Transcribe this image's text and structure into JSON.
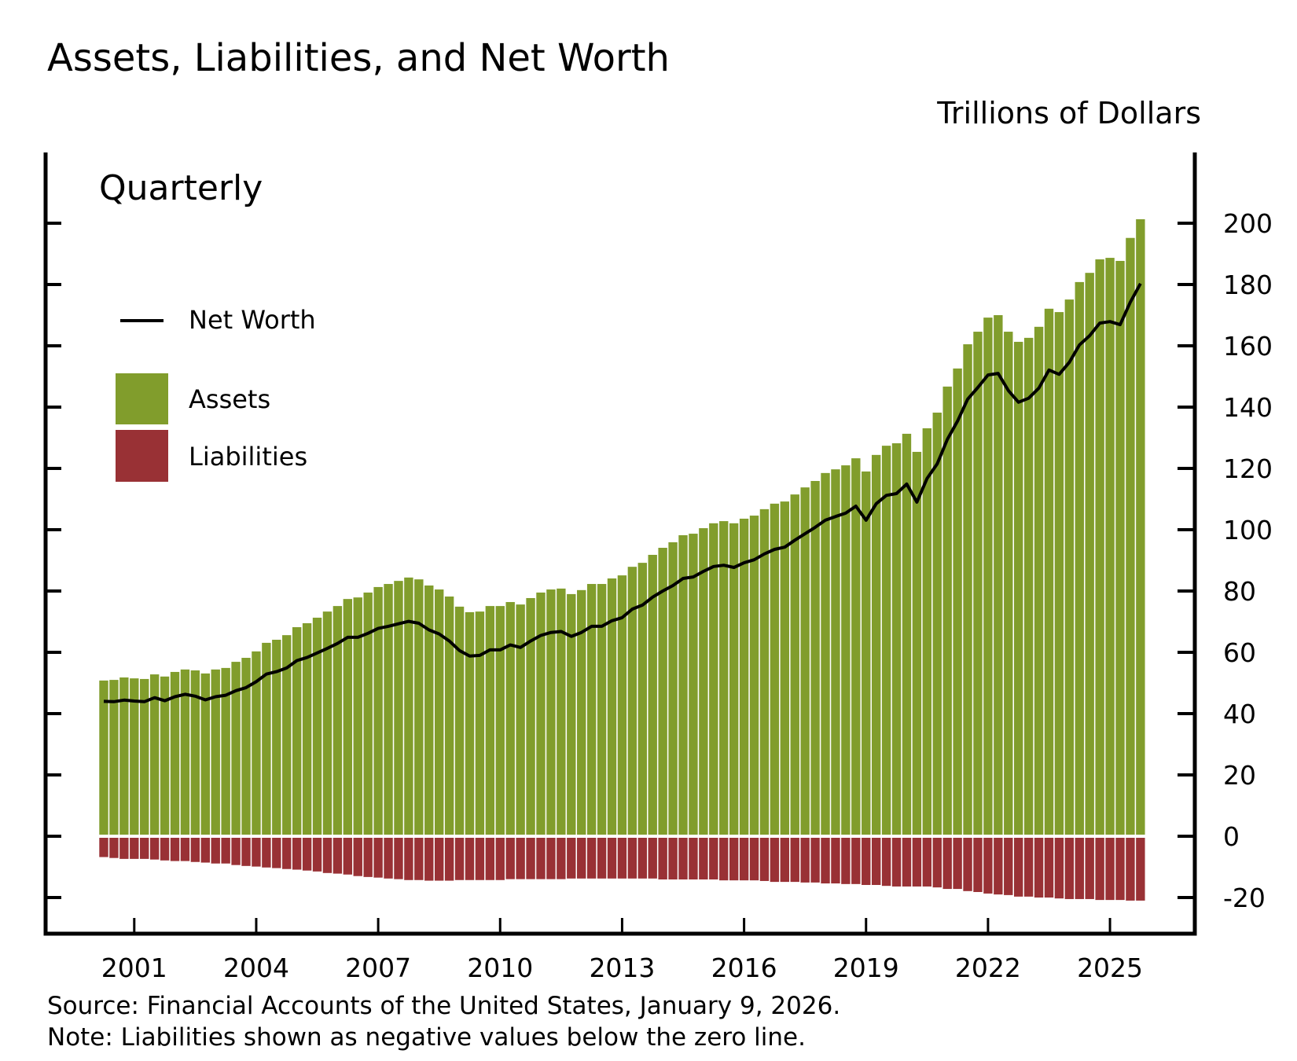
{
  "colors": {
    "assets": "#819d2c",
    "liabilities": "#993135",
    "net_worth": "#000000"
  },
  "chart_data": {
    "type": "bar",
    "title": "Assets, Liabilities, and Net Worth",
    "units_label": "Trillions of Dollars",
    "frequency_label": "Quarterly",
    "ylim": [
      -25,
      215
    ],
    "y_ticks": [
      "200",
      "180",
      "160",
      "140",
      "120",
      "100",
      "80",
      "60",
      "40",
      "20",
      "0",
      "-20"
    ],
    "y_tick_values": [
      200,
      180,
      160,
      140,
      120,
      100,
      80,
      60,
      40,
      20,
      0,
      -20
    ],
    "x_ticks": [
      "2001",
      "2004",
      "2007",
      "2010",
      "2013",
      "2016",
      "2019",
      "2022",
      "2025"
    ],
    "x_start": "2000Q1",
    "x_end": "2025Q3",
    "legend_placement": "top-left",
    "legend": {
      "net_worth": "Net Worth",
      "assets": "Assets",
      "liabilities": "Liabilities"
    },
    "series": [
      {
        "name": "Assets",
        "type": "bar",
        "values": [
          50.8,
          51.0,
          51.8,
          51.5,
          51.3,
          52.8,
          52.1,
          53.6,
          54.4,
          54.1,
          53.1,
          54.4,
          54.9,
          56.9,
          58.2,
          60.3,
          63.1,
          64.1,
          65.6,
          68.2,
          69.5,
          71.3,
          73.3,
          75.1,
          77.4,
          77.9,
          79.5,
          81.3,
          82.3,
          83.3,
          84.4,
          83.8,
          81.8,
          80.5,
          78.2,
          74.9,
          73.1,
          73.3,
          75.1,
          75.1,
          76.4,
          75.6,
          77.7,
          79.5,
          80.5,
          80.8,
          79.0,
          80.3,
          82.3,
          82.3,
          84.1,
          85.1,
          87.9,
          89.2,
          91.8,
          94.1,
          95.9,
          98.2,
          98.7,
          100.5,
          102.1,
          102.8,
          102.1,
          103.6,
          104.6,
          106.7,
          108.5,
          109.2,
          111.5,
          113.8,
          115.9,
          118.5,
          119.7,
          121.0,
          123.3,
          119.0,
          124.4,
          127.4,
          128.2,
          131.3,
          125.4,
          133.1,
          138.2,
          146.7,
          152.6,
          160.5,
          164.6,
          169.2,
          170.0,
          164.6,
          161.3,
          162.6,
          166.2,
          172.1,
          171.0,
          175.1,
          180.8,
          183.8,
          188.2,
          188.7,
          187.7,
          195.2,
          201.3
        ]
      },
      {
        "name": "Liabilities",
        "type": "bar",
        "values": [
          -6.8,
          -7.1,
          -7.4,
          -7.4,
          -7.4,
          -7.6,
          -7.9,
          -8.1,
          -8.1,
          -8.4,
          -8.6,
          -8.9,
          -8.9,
          -9.4,
          -9.7,
          -9.9,
          -10.2,
          -10.4,
          -10.7,
          -10.9,
          -11.2,
          -11.5,
          -12.0,
          -12.2,
          -12.5,
          -13.0,
          -13.3,
          -13.5,
          -13.8,
          -14.0,
          -14.3,
          -14.3,
          -14.5,
          -14.5,
          -14.5,
          -14.3,
          -14.3,
          -14.3,
          -14.3,
          -14.3,
          -14.0,
          -14.0,
          -14.0,
          -14.0,
          -14.0,
          -14.0,
          -13.8,
          -13.8,
          -13.8,
          -13.8,
          -13.8,
          -13.8,
          -13.8,
          -13.8,
          -13.8,
          -14.1,
          -14.1,
          -14.1,
          -14.1,
          -14.1,
          -14.1,
          -14.4,
          -14.4,
          -14.4,
          -14.4,
          -14.6,
          -14.9,
          -14.9,
          -14.9,
          -15.1,
          -15.1,
          -15.4,
          -15.4,
          -15.6,
          -15.6,
          -15.9,
          -15.9,
          -16.2,
          -16.4,
          -16.4,
          -16.4,
          -16.4,
          -16.7,
          -17.2,
          -17.2,
          -17.9,
          -18.2,
          -18.7,
          -19.0,
          -19.2,
          -19.7,
          -19.7,
          -20.0,
          -20.0,
          -20.3,
          -20.5,
          -20.5,
          -20.5,
          -20.8,
          -20.8,
          -20.8,
          -21.0,
          -21.0
        ]
      },
      {
        "name": "Net Worth",
        "type": "line",
        "values": [
          44.0,
          43.9,
          44.4,
          44.1,
          43.9,
          45.2,
          44.2,
          45.5,
          46.3,
          45.7,
          44.5,
          45.5,
          46.0,
          47.5,
          48.5,
          50.4,
          52.9,
          53.7,
          54.9,
          57.3,
          58.3,
          59.8,
          61.3,
          62.9,
          64.9,
          64.9,
          66.2,
          67.8,
          68.5,
          69.3,
          70.1,
          69.5,
          67.3,
          66.0,
          63.7,
          60.6,
          58.8,
          59.0,
          60.8,
          60.8,
          62.4,
          61.6,
          63.7,
          65.5,
          66.5,
          66.8,
          65.2,
          66.5,
          68.5,
          68.5,
          70.3,
          71.3,
          74.1,
          75.4,
          78.0,
          80.0,
          81.8,
          84.1,
          84.6,
          86.4,
          88.0,
          88.4,
          87.7,
          89.2,
          90.2,
          92.1,
          93.6,
          94.3,
          96.6,
          98.7,
          100.8,
          103.1,
          104.3,
          105.4,
          107.7,
          103.1,
          108.5,
          111.2,
          111.8,
          114.9,
          109.0,
          116.7,
          121.5,
          129.5,
          135.4,
          142.6,
          146.4,
          150.5,
          151.0,
          145.4,
          141.6,
          142.9,
          146.2,
          152.1,
          150.7,
          154.6,
          160.3,
          163.3,
          167.4,
          167.9,
          166.9,
          174.2,
          180.3
        ]
      }
    ]
  },
  "footer": {
    "source": "Source: Financial Accounts of the United States, January 9, 2026.",
    "note": "Note: Liabilities shown as negative values below the zero line."
  }
}
